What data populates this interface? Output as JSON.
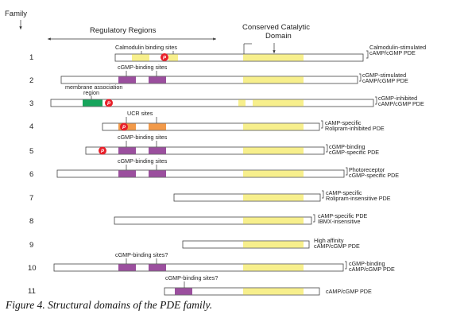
{
  "header": {
    "family_label": "Family",
    "regulatory_label": "Regulatory Regions",
    "catalytic_label_line1": "Conserved Catalytic",
    "catalytic_label_line2": "Domain"
  },
  "legend_colors": {
    "catalytic": "#f7ef8c",
    "calmodulin": "#f7ef8c",
    "cgmp_binding": "#9b4f9e",
    "membrane": "#17a55c",
    "ucr": "#f29a4a",
    "phospho": "#e8202a",
    "bar_fill": "#ffffff",
    "bar_border": "#333333"
  },
  "phospho_symbol": "P",
  "families": [
    {
      "number": "1",
      "annotation": "Calmodulin binding sites",
      "name_line1": "Calmodulin-stimulated",
      "name_line2": "cAMP/cGMP PDE"
    },
    {
      "number": "2",
      "annotation": "cGMP-binding sites",
      "name_line1": "cGMP-stimulated",
      "name_line2": "cAMP/cGMP PDE"
    },
    {
      "number": "3",
      "annotation_line1": "membrane association",
      "annotation_line2": "region",
      "name_line1": "cGMP-inhibited",
      "name_line2": "cAMP/cGMP PDE"
    },
    {
      "number": "4",
      "annotation": "UCR sites",
      "name_line1": "cAMP-specific",
      "name_line2": "Rolipram-inhibited PDE"
    },
    {
      "number": "5",
      "annotation": "cGMP-binding sites",
      "name_line1": "cGMP-binding",
      "name_line2": "cGMP-specific PDE"
    },
    {
      "number": "6",
      "annotation": "cGMP-binding sites",
      "name_line1": "Photoreceptor",
      "name_line2": "cGMP-specific PDE"
    },
    {
      "number": "7",
      "name_line1": "cAMP-specific",
      "name_line2": "Rolipram-insensitive PDE"
    },
    {
      "number": "8",
      "name_line1": "cAMP-specific PDE",
      "name_line2": "IBMX-insensitive"
    },
    {
      "number": "9",
      "name_line1": "High affinity",
      "name_line2": "cAMP/cGMP PDE"
    },
    {
      "number": "10",
      "annotation": "cGMP-binding sites?",
      "name_line1": "cGMP-binding",
      "name_line2": "cAMP/cGMP PDE"
    },
    {
      "number": "11",
      "annotation": "cGMP-binding sites?",
      "name_line1": "cAMP/cGMP PDE"
    }
  ],
  "caption": "Figure 4. Structural domains of the PDE family."
}
